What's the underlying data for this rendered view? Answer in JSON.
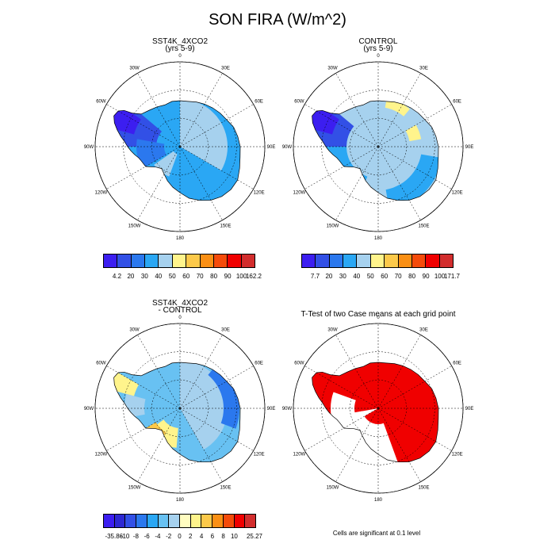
{
  "title": "SON FIRA (W/m^2)",
  "panels": [
    {
      "id": "sst4k",
      "title": "SST4K_4XCO2",
      "subtitle": "(yrs 5-9)",
      "style": "abs_high"
    },
    {
      "id": "control",
      "title": "CONTROL",
      "subtitle": "(yrs 5-9)",
      "style": "abs_ctrl"
    },
    {
      "id": "diff",
      "title": "SST4K_4XCO2",
      "subtitle": "- CONTROL",
      "style": "diff"
    },
    {
      "id": "ttest",
      "title": "T-Test of two Case means at each grid point",
      "subtitle": "",
      "style": "ttest"
    }
  ],
  "longitude_labels": [
    "0",
    "30E",
    "60E",
    "90E",
    "120E",
    "150E",
    "180",
    "150W",
    "120W",
    "90W",
    "60W",
    "30W"
  ],
  "colorbars": {
    "abs1": {
      "labels": [
        "4.2",
        "20",
        "30",
        "40",
        "50",
        "60",
        "70",
        "80",
        "90",
        "100",
        "162.2"
      ],
      "colors": [
        "#3c1ef0",
        "#3250e6",
        "#2b78ee",
        "#2aa7f4",
        "#a6d1ee",
        "#fff48c",
        "#fcc94a",
        "#fa8f14",
        "#f54b0a",
        "#f00000",
        "#d22d2d"
      ]
    },
    "abs2": {
      "labels": [
        "7.7",
        "20",
        "30",
        "40",
        "50",
        "60",
        "70",
        "80",
        "90",
        "100",
        "171.7"
      ],
      "colors": [
        "#3c1ef0",
        "#3250e6",
        "#2b78ee",
        "#2aa7f4",
        "#a6d1ee",
        "#fff48c",
        "#fcc94a",
        "#fa8f14",
        "#f54b0a",
        "#f00000",
        "#d22d2d"
      ]
    },
    "diff": {
      "labels": [
        "-35.86",
        "-10",
        "-8",
        "-6",
        "-4",
        "-2",
        "0",
        "2",
        "4",
        "6",
        "8",
        "10",
        "25.27"
      ],
      "colors": [
        "#3c1ef0",
        "#2d28d2",
        "#3250e6",
        "#2b78ee",
        "#2aa7f4",
        "#68c1f2",
        "#a6d1ee",
        "#fffcc0",
        "#fff48c",
        "#fcc94a",
        "#fa8f14",
        "#f54b0a",
        "#f00000",
        "#d22d2d"
      ]
    }
  },
  "footnote": "Cells are significant at 0.1 level"
}
